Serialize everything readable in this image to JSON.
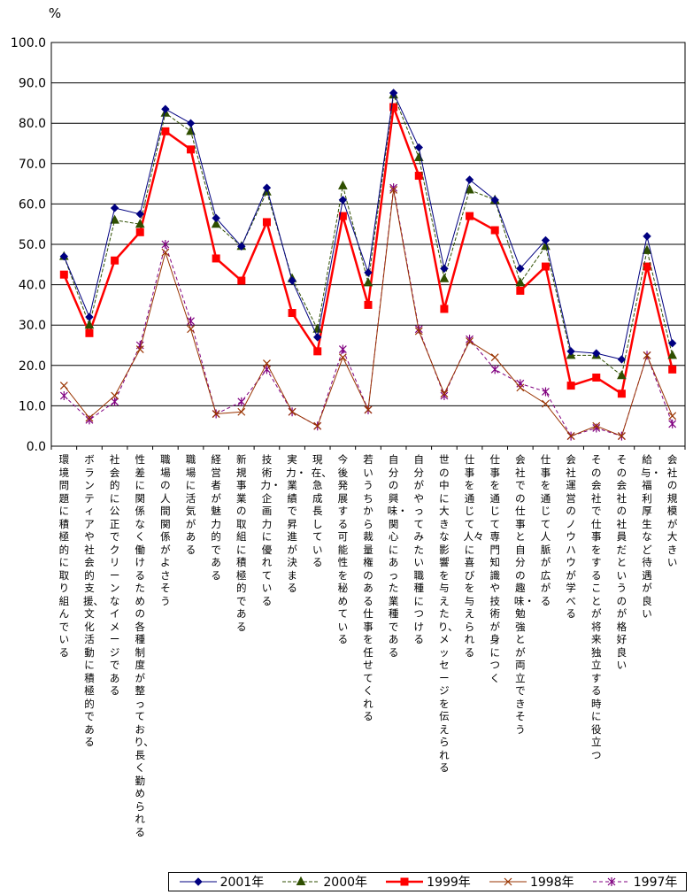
{
  "chart_data": {
    "type": "line",
    "unit_label": "%",
    "ylim": [
      0,
      100
    ],
    "ytick_labels": [
      "0.0",
      "10.0",
      "20.0",
      "30.0",
      "40.0",
      "50.0",
      "60.0",
      "70.0",
      "80.0",
      "90.0",
      "100.0"
    ],
    "grid": true,
    "legend_position": "bottom",
    "categories": [
      "環境問題に積極的に取り組んでいる",
      "ボランティアや社会的支援、文化活動に積極的である",
      "社会的に公正でクリーンなイメージである",
      "性差に関係なく働けるための各種制度が整っており、長く勤められる",
      "職場の人間関係がよさそう",
      "職場に活気がある",
      "経営者が魅力的である",
      "新規事業の取組に積極的である",
      "技術力・企画力に優れている",
      "実力・業績で昇進が決まる",
      "現在、急成長している",
      "今後発展する可能性を秘めている",
      "若いうちから裁量権のある仕事を任せてくれる",
      "自分の興味・関心にあった業種である",
      "自分がやってみたい職種につける",
      "世の中に大きな影響を与えたり、メッセージを伝えられる",
      "仕事を通じて人々に喜びを与えられる",
      "仕事を通じて専門知識や技術が身につく",
      "会社での仕事と自分の趣味・勉強とが両立できそう",
      "仕事を通じて人脈が広がる",
      "会社運営のノウハウが学べる",
      "その会社で仕事をすることが将来独立する時に役立つ",
      "その会社の社員だというのが格好良い",
      "給与・福利厚生など待遇が良い",
      "会社の規模が大きい"
    ],
    "series": [
      {
        "name": "2001年",
        "color": "#000080",
        "marker": "diamond",
        "values": [
          47,
          32,
          59,
          57.5,
          83.5,
          80,
          56.5,
          49.5,
          64,
          41,
          27,
          61,
          43,
          87.5,
          74,
          44,
          66,
          61,
          44,
          51,
          23.5,
          23,
          21.5,
          52,
          25.5
        ]
      },
      {
        "name": "2000年",
        "color": "#2f4f00",
        "marker": "triangle",
        "values": [
          47,
          30,
          56,
          55,
          82.5,
          78,
          55,
          49.5,
          63,
          41.5,
          29,
          64.5,
          40.5,
          87,
          71.5,
          41.5,
          63.5,
          61,
          40.5,
          49.5,
          22.5,
          22.5,
          17.5,
          48.5,
          22.5
        ]
      },
      {
        "name": "1999年",
        "color": "#ff0000",
        "marker": "square",
        "values": [
          42.5,
          28,
          46,
          53,
          78,
          73.5,
          46.5,
          41,
          55.5,
          33,
          23.5,
          57,
          35,
          84,
          67,
          34,
          57,
          53.5,
          38.5,
          44.5,
          15,
          17,
          13,
          44.5,
          19
        ]
      },
      {
        "name": "1998年",
        "color": "#993300",
        "marker": "x",
        "values": [
          15,
          7,
          12.5,
          24,
          48,
          29,
          8,
          8.5,
          20.5,
          8.5,
          5,
          22,
          9,
          63.5,
          28.5,
          13,
          26,
          22,
          14.5,
          10.5,
          2.5,
          5,
          2.5,
          22.5,
          7.5
        ]
      },
      {
        "name": "1997年",
        "color": "#800080",
        "marker": "star",
        "values": [
          12.5,
          6.5,
          11,
          25,
          50,
          31,
          8,
          11,
          19,
          8.5,
          5,
          24,
          9,
          64,
          29,
          12.5,
          26.5,
          19,
          15.5,
          13.5,
          2.5,
          4.5,
          2.5,
          22.5,
          5.5
        ]
      }
    ]
  }
}
